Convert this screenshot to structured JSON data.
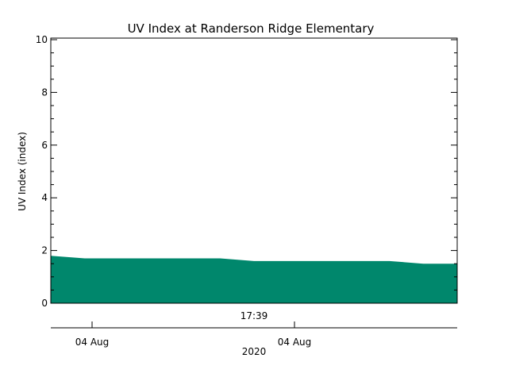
{
  "chart_data": {
    "type": "area",
    "title": "UV Index at Randerson Ridge Elementary",
    "ylabel": "UV Index (index)",
    "xlabel": "",
    "ylim": [
      0,
      10
    ],
    "y_ticks": [
      "0",
      "2",
      "4",
      "6",
      "8",
      "10"
    ],
    "x_ticks": [
      "04 Aug",
      "04 Aug"
    ],
    "x_sublabel": "2020",
    "annotation": "17:39",
    "grid": false,
    "series": [
      {
        "color": "#00876c",
        "values": [
          1.8,
          1.7,
          1.7,
          1.7,
          1.7,
          1.7,
          1.6,
          1.6,
          1.6,
          1.6,
          1.6,
          1.5,
          1.5
        ]
      }
    ]
  }
}
